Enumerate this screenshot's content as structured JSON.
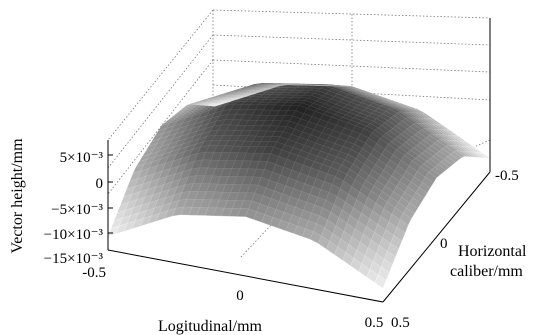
{
  "chart_data": {
    "type": "surface",
    "title": "",
    "xlabel": "Logitudinal/mm",
    "ylabel": "Horizontal caliber/mm",
    "zlabel": "Vector height/mm",
    "xlim": [
      -0.5,
      0.5
    ],
    "ylim": [
      -0.5,
      0.5
    ],
    "zlim": [
      -0.015,
      0.005
    ],
    "x_ticks": [
      "-0.5",
      "0",
      "0.5"
    ],
    "y_ticks": [
      "-0.5",
      "0",
      "0.5"
    ],
    "z_ticks": [
      "5×10⁻³",
      "0",
      "−5×10⁻³",
      "−10×10⁻³",
      "−15×10⁻³"
    ],
    "grid": true,
    "colormap": "grayscale",
    "surface": {
      "x": [
        -0.5,
        -0.25,
        0,
        0.25,
        0.5
      ],
      "y": [
        -0.5,
        -0.25,
        0,
        0.25,
        0.5
      ],
      "z": [
        [
          -0.0125,
          -0.0062,
          -0.0042,
          -0.0062,
          -0.0125
        ],
        [
          -0.0062,
          0.0,
          0.0021,
          0.0,
          -0.0062
        ],
        [
          -0.0042,
          0.0021,
          0.0042,
          0.0021,
          -0.0042
        ],
        [
          -0.0062,
          0.0,
          0.0021,
          0.0,
          -0.0062
        ],
        [
          -0.0125,
          -0.0062,
          -0.0042,
          -0.0062,
          -0.0125
        ]
      ]
    }
  }
}
